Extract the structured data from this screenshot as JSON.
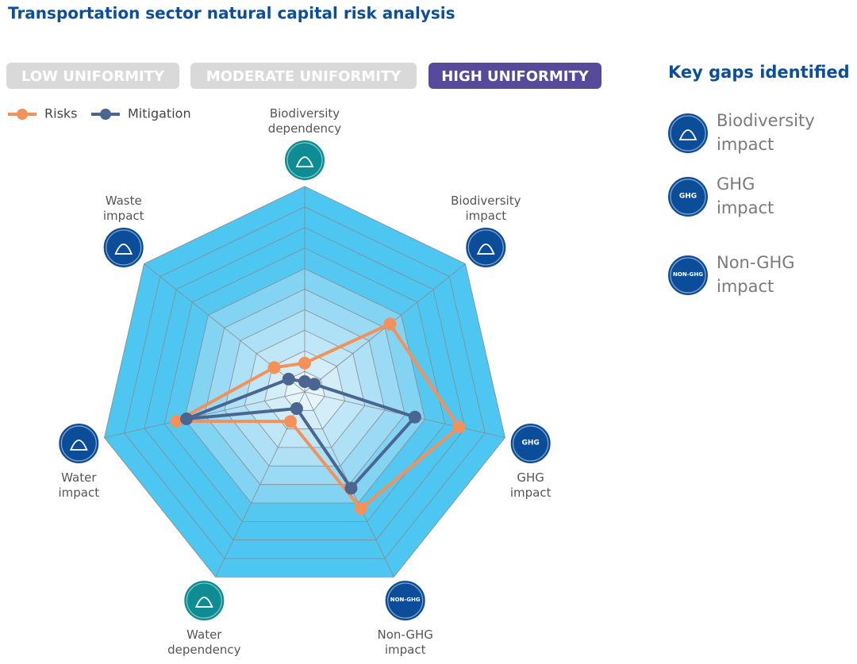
{
  "chart_data": {
    "type": "radar",
    "title": "Transportation sector natural capital risk analysis",
    "filters": [
      {
        "label": "LOW UNIFORMITY",
        "active": false
      },
      {
        "label": "MODERATE UNIFORMITY",
        "active": false
      },
      {
        "label": "HIGH UNIFORMITY",
        "active": true
      }
    ],
    "categories": [
      "Biodiversity dependency",
      "Biodiversity impact",
      "GHG impact",
      "Non-GHG impact",
      "Water dependency",
      "Water impact",
      "Waste impact"
    ],
    "category_colors": [
      "#0e8c94",
      "#0b4d98",
      "#0b4d98",
      "#0b4d98",
      "#0e8c94",
      "#0b4d98",
      "#0b4d98"
    ],
    "icon_labels": [
      null,
      null,
      "GHG",
      "NON-GHG",
      null,
      null,
      null
    ],
    "series": [
      {
        "name": "Risks",
        "color": "#f4915a",
        "values": [
          1.4,
          5.3,
          7.7,
          6.3,
          1.6,
          6.4,
          1.9
        ]
      },
      {
        "name": "Mitigation",
        "color": "#4a6690",
        "values": [
          0.5,
          0.6,
          5.5,
          5.2,
          0.9,
          5.9,
          1.0
        ]
      }
    ],
    "rlim": [
      0,
      10
    ],
    "rticks": [
      1,
      2,
      3,
      4,
      5,
      6,
      7,
      8,
      9,
      10
    ],
    "grid": true,
    "key_gaps": {
      "title": "Key gaps identified",
      "items": [
        {
          "label": "Biodiversity impact",
          "icon_label": null
        },
        {
          "label": "GHG impact",
          "icon_label": "GHG"
        },
        {
          "label": "Non-GHG impact",
          "icon_label": "NON-GHG"
        }
      ]
    }
  }
}
